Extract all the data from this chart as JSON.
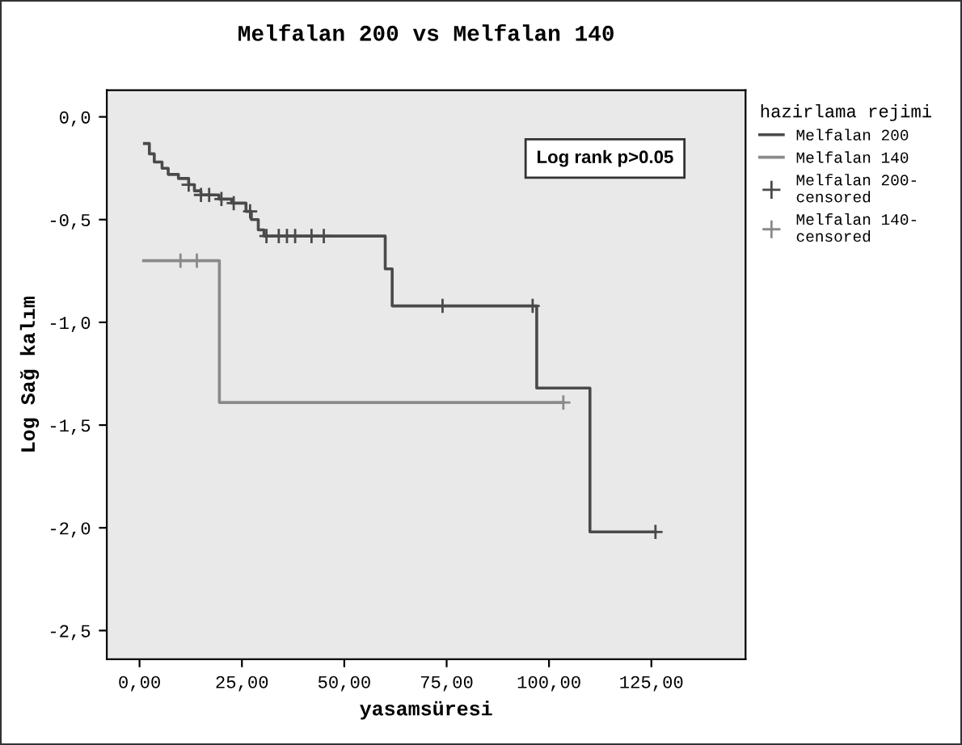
{
  "chart_data": {
    "type": "step",
    "title": "Melfalan 200 vs Melfalan 140",
    "xlabel": "yasamsüresi",
    "ylabel": "Log Sağ kalım",
    "legend_title": "hazirlama rejimi",
    "annotations": [
      "Log rank p>0.05"
    ],
    "series": [
      {
        "name": "Melfalan 200",
        "color": "#4a4a4a",
        "x": [
          1.2,
          2.4,
          3.6,
          5.5,
          7,
          9.5,
          12,
          13.4,
          15,
          19.4,
          22.5,
          26,
          27.3,
          29,
          30.4,
          60,
          61.7,
          97,
          110,
          126
        ],
        "values": [
          -0.13,
          -0.18,
          -0.22,
          -0.25,
          -0.28,
          -0.3,
          -0.33,
          -0.36,
          -0.38,
          -0.4,
          -0.42,
          -0.46,
          -0.5,
          -0.55,
          -0.58,
          -0.74,
          -0.92,
          -1.32,
          -2.02,
          -2.02
        ]
      },
      {
        "name": "Melfalan 140",
        "color": "#8a8a8a",
        "x": [
          1,
          19.5,
          103.5
        ],
        "values": [
          -0.7,
          -1.39,
          -1.39
        ]
      },
      {
        "name": "Melfalan 200-censored",
        "type": "scatter",
        "marker": "cross",
        "color": "#4a4a4a",
        "x": [
          12,
          15,
          17,
          20,
          23,
          27,
          31,
          34,
          36,
          38,
          42,
          45,
          74,
          96,
          126
        ],
        "values": [
          -0.33,
          -0.38,
          -0.38,
          -0.4,
          -0.42,
          -0.46,
          -0.58,
          -0.58,
          -0.58,
          -0.58,
          -0.58,
          -0.58,
          -0.92,
          -0.92,
          -2.02
        ]
      },
      {
        "name": "Melfalan 140-censored",
        "type": "scatter",
        "marker": "cross",
        "color": "#8a8a8a",
        "x": [
          10,
          14,
          103.5
        ],
        "values": [
          -0.7,
          -0.7,
          -1.39
        ]
      }
    ],
    "xlim": [
      -8,
      148
    ],
    "ylim": [
      -2.64,
      0.13
    ],
    "xticks": [
      {
        "value": 0,
        "label": "0,00"
      },
      {
        "value": 25,
        "label": "25,00"
      },
      {
        "value": 50,
        "label": "50,00"
      },
      {
        "value": 75,
        "label": "75,00"
      },
      {
        "value": 100,
        "label": "100,00"
      },
      {
        "value": 125,
        "label": "125,00"
      }
    ],
    "yticks": [
      {
        "value": 0,
        "label": "0,0"
      },
      {
        "value": -0.5,
        "label": "-0,5"
      },
      {
        "value": -1,
        "label": "-1,0"
      },
      {
        "value": -1.5,
        "label": "-1,5"
      },
      {
        "value": -2,
        "label": "-2,0"
      },
      {
        "value": -2.5,
        "label": "-2,5"
      }
    ],
    "grid": false,
    "legend": "top right"
  }
}
